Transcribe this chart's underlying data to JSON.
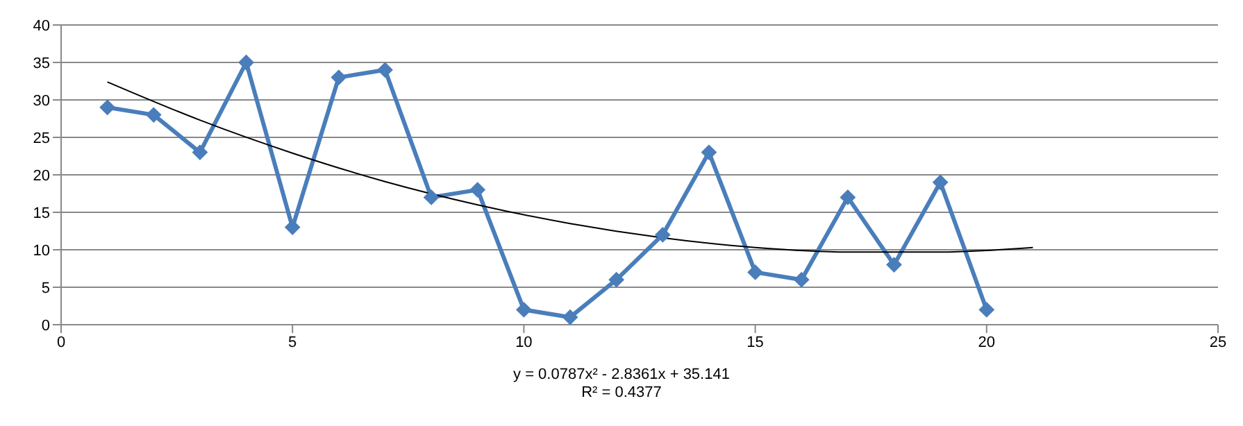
{
  "chart_data": {
    "type": "line",
    "x": [
      1,
      2,
      3,
      4,
      5,
      6,
      7,
      8,
      9,
      10,
      11,
      12,
      13,
      14,
      15,
      16,
      17,
      18,
      19,
      20
    ],
    "series": [
      {
        "color": "#4a7ebb",
        "values": [
          29,
          28,
          23,
          35,
          13,
          33,
          34,
          17,
          18,
          2,
          1,
          6,
          12,
          23,
          7,
          6,
          17,
          8,
          19,
          2
        ]
      },
      {
        "type": "line",
        "color": "#000000",
        "marker": "none",
        "x": [
          1,
          3,
          5,
          7,
          9,
          11,
          13,
          15,
          17,
          19,
          21
        ],
        "values": [
          32.4,
          27.3,
          22.9,
          19.1,
          16.0,
          13.5,
          11.6,
          10.3,
          9.7,
          9.7,
          10.3
        ]
      }
    ],
    "xlim": [
      0,
      25
    ],
    "xticks": [
      0,
      5,
      10,
      15,
      20,
      25
    ],
    "ylim": [
      0,
      40
    ],
    "yticks": [
      0,
      5,
      10,
      15,
      20,
      25,
      30,
      35,
      40
    ],
    "grid": "y",
    "marker": "diamond",
    "line_style": "solid",
    "annotations": [
      "y = 0.0787x² - 2.8361x + 35.141",
      "R² = 0.4377"
    ]
  }
}
